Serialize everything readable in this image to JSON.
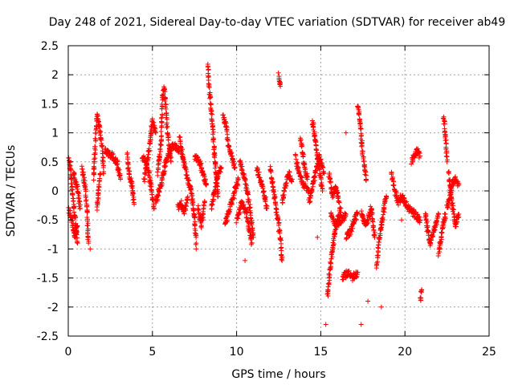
{
  "chart_data": {
    "type": "scatter",
    "title": "Day 248 of 2021, Sidereal Day-to-day VTEC variation (SDTVAR) for receiver ab49",
    "xlabel": "GPS time / hours",
    "ylabel": "SDTVAR / TECUs",
    "xlim": [
      0,
      25
    ],
    "ylim": [
      -2.5,
      2.5
    ],
    "xticks": [
      "0",
      "5",
      "10",
      "15",
      "20",
      "25"
    ],
    "yticks": [
      "2.5",
      "2",
      "1.5",
      "1",
      "0.5",
      "0",
      "-0.5",
      "-1",
      "-1.5",
      "-2",
      "-2.5"
    ],
    "grid": true,
    "marker": "+",
    "color": "#ff0000",
    "series": [
      {
        "name": "SDTVAR",
        "tracks": [
          [
            [
              0.0,
              0.6
            ],
            [
              0.15,
              0.3
            ],
            [
              0.3,
              -0.2
            ],
            [
              0.45,
              -0.6
            ],
            [
              0.55,
              -0.9
            ]
          ],
          [
            [
              0.0,
              -0.3
            ],
            [
              0.2,
              -0.5
            ],
            [
              0.4,
              -0.8
            ],
            [
              0.55,
              -0.6
            ]
          ],
          [
            [
              0.3,
              0.3
            ],
            [
              0.5,
              0.1
            ],
            [
              0.6,
              -0.1
            ],
            [
              0.7,
              -0.3
            ]
          ],
          [
            [
              0.8,
              0.4
            ],
            [
              1.0,
              0.1
            ],
            [
              1.1,
              -0.3
            ],
            [
              1.2,
              -0.9
            ]
          ],
          [
            [
              1.5,
              0.2
            ],
            [
              1.6,
              0.8
            ],
            [
              1.7,
              1.3
            ],
            [
              1.85,
              1.1
            ],
            [
              2.0,
              0.8
            ],
            [
              2.1,
              0.3
            ]
          ],
          [
            [
              1.7,
              -0.3
            ],
            [
              1.8,
              0.0
            ],
            [
              1.9,
              0.3
            ]
          ],
          [
            [
              2.2,
              0.7
            ],
            [
              2.6,
              0.6
            ],
            [
              2.9,
              0.5
            ],
            [
              3.1,
              0.2
            ]
          ],
          [
            [
              3.5,
              0.6
            ],
            [
              3.6,
              0.3
            ],
            [
              3.8,
              0.1
            ],
            [
              3.9,
              -0.2
            ]
          ],
          [
            [
              4.4,
              0.6
            ],
            [
              4.6,
              0.5
            ],
            [
              4.8,
              0.3
            ],
            [
              5.0,
              -0.1
            ],
            [
              5.1,
              -0.3
            ]
          ],
          [
            [
              4.5,
              0.2
            ],
            [
              4.8,
              0.7
            ],
            [
              5.0,
              1.2
            ],
            [
              5.2,
              1.0
            ]
          ],
          [
            [
              5.3,
              0.3
            ],
            [
              5.5,
              0.8
            ],
            [
              5.6,
              1.6
            ],
            [
              5.7,
              1.8
            ],
            [
              5.9,
              1.0
            ],
            [
              6.1,
              0.5
            ]
          ],
          [
            [
              5.2,
              -0.2
            ],
            [
              5.5,
              0.1
            ],
            [
              5.8,
              0.5
            ],
            [
              6.2,
              0.8
            ],
            [
              6.6,
              0.7
            ]
          ],
          [
            [
              6.6,
              0.9
            ],
            [
              6.8,
              0.6
            ],
            [
              7.0,
              0.3
            ],
            [
              7.3,
              0.0
            ],
            [
              7.5,
              -0.5
            ],
            [
              7.6,
              -0.9
            ]
          ],
          [
            [
              6.5,
              -0.3
            ],
            [
              6.7,
              -0.2
            ],
            [
              6.9,
              -0.4
            ],
            [
              7.1,
              -0.1
            ]
          ],
          [
            [
              7.5,
              0.6
            ],
            [
              7.8,
              0.5
            ],
            [
              8.0,
              0.3
            ],
            [
              8.2,
              0.1
            ]
          ],
          [
            [
              7.7,
              -0.3
            ],
            [
              7.9,
              -0.6
            ],
            [
              8.1,
              -0.2
            ]
          ],
          [
            [
              8.3,
              2.2
            ],
            [
              8.35,
              1.8
            ],
            [
              8.5,
              1.4
            ],
            [
              8.6,
              1.0
            ],
            [
              8.7,
              0.6
            ],
            [
              8.8,
              0.2
            ],
            [
              8.9,
              -0.1
            ]
          ],
          [
            [
              8.5,
              -0.3
            ],
            [
              8.7,
              0.0
            ],
            [
              8.9,
              0.3
            ],
            [
              9.1,
              0.4
            ]
          ],
          [
            [
              9.2,
              1.3
            ],
            [
              9.4,
              1.1
            ],
            [
              9.5,
              0.8
            ],
            [
              9.7,
              0.6
            ],
            [
              9.9,
              0.4
            ]
          ],
          [
            [
              9.3,
              -0.6
            ],
            [
              9.5,
              -0.4
            ],
            [
              9.7,
              -0.2
            ],
            [
              9.9,
              0.0
            ],
            [
              10.1,
              0.2
            ]
          ],
          [
            [
              10.2,
              0.5
            ],
            [
              10.5,
              0.2
            ],
            [
              10.8,
              -0.3
            ],
            [
              11.0,
              -0.8
            ]
          ],
          [
            [
              10.0,
              -0.5
            ],
            [
              10.3,
              -0.2
            ],
            [
              10.6,
              -0.4
            ],
            [
              10.9,
              -0.9
            ]
          ],
          [
            [
              11.2,
              0.4
            ],
            [
              11.4,
              0.2
            ],
            [
              11.6,
              0.0
            ],
            [
              11.8,
              -0.3
            ]
          ],
          [
            [
              12.0,
              0.4
            ],
            [
              12.2,
              0.0
            ],
            [
              12.4,
              -0.4
            ],
            [
              12.6,
              -0.8
            ],
            [
              12.7,
              -1.2
            ]
          ],
          [
            [
              12.5,
              2.0
            ],
            [
              12.6,
              1.8
            ]
          ],
          [
            [
              12.7,
              -0.2
            ],
            [
              12.9,
              0.1
            ],
            [
              13.1,
              0.3
            ],
            [
              13.3,
              0.2
            ]
          ],
          [
            [
              13.5,
              0.6
            ],
            [
              13.7,
              0.3
            ],
            [
              14.0,
              0.1
            ],
            [
              14.3,
              0.0
            ]
          ],
          [
            [
              13.8,
              0.9
            ],
            [
              14.0,
              0.5
            ],
            [
              14.2,
              0.2
            ]
          ],
          [
            [
              14.5,
              1.2
            ],
            [
              14.7,
              0.8
            ],
            [
              14.9,
              0.4
            ],
            [
              15.1,
              0.0
            ]
          ],
          [
            [
              14.3,
              -0.2
            ],
            [
              14.6,
              0.2
            ],
            [
              14.9,
              0.6
            ],
            [
              15.2,
              0.3
            ]
          ],
          [
            [
              15.4,
              -1.8
            ],
            [
              15.6,
              -1.2
            ],
            [
              15.8,
              -0.8
            ],
            [
              16.0,
              -0.5
            ],
            [
              16.2,
              -0.3
            ]
          ],
          [
            [
              15.6,
              -0.4
            ],
            [
              15.9,
              -0.6
            ],
            [
              16.2,
              -0.5
            ],
            [
              16.5,
              -0.4
            ]
          ],
          [
            [
              15.5,
              0.3
            ],
            [
              15.7,
              -0.1
            ],
            [
              15.9,
              0.1
            ],
            [
              16.1,
              -0.2
            ]
          ],
          [
            [
              16.5,
              -0.8
            ],
            [
              16.8,
              -0.7
            ],
            [
              17.0,
              -0.5
            ],
            [
              17.2,
              -0.4
            ]
          ],
          [
            [
              16.3,
              -1.5
            ],
            [
              16.6,
              -1.4
            ],
            [
              16.9,
              -1.5
            ],
            [
              17.2,
              -1.4
            ]
          ],
          [
            [
              17.2,
              1.5
            ],
            [
              17.3,
              1.3
            ],
            [
              17.5,
              0.6
            ],
            [
              17.7,
              0.2
            ]
          ],
          [
            [
              17.4,
              -0.4
            ],
            [
              17.7,
              -0.6
            ],
            [
              18.0,
              -0.3
            ],
            [
              18.2,
              -0.8
            ]
          ],
          [
            [
              18.3,
              -1.3
            ],
            [
              18.5,
              -0.8
            ],
            [
              18.7,
              -0.4
            ],
            [
              18.9,
              -0.1
            ]
          ],
          [
            [
              19.2,
              0.3
            ],
            [
              19.4,
              0.0
            ],
            [
              19.6,
              -0.2
            ],
            [
              19.8,
              -0.1
            ]
          ],
          [
            [
              19.8,
              -0.1
            ],
            [
              20.2,
              -0.3
            ],
            [
              20.6,
              -0.4
            ],
            [
              20.9,
              -0.5
            ]
          ],
          [
            [
              20.4,
              0.5
            ],
            [
              20.7,
              0.7
            ],
            [
              20.9,
              0.6
            ]
          ],
          [
            [
              20.9,
              -1.9
            ],
            [
              21.0,
              -1.7
            ]
          ],
          [
            [
              21.2,
              -0.4
            ],
            [
              21.5,
              -0.9
            ],
            [
              21.8,
              -0.6
            ],
            [
              22.0,
              -0.4
            ]
          ],
          [
            [
              22.0,
              -1.1
            ],
            [
              22.2,
              -0.7
            ],
            [
              22.4,
              -0.4
            ]
          ],
          [
            [
              22.3,
              1.3
            ],
            [
              22.4,
              1.0
            ],
            [
              22.5,
              0.5
            ]
          ],
          [
            [
              22.6,
              0.3
            ],
            [
              22.8,
              -0.2
            ],
            [
              23.0,
              -0.6
            ],
            [
              23.2,
              -0.4
            ]
          ],
          [
            [
              22.5,
              -0.3
            ],
            [
              22.8,
              0.1
            ],
            [
              23.0,
              0.2
            ],
            [
              23.2,
              0.1
            ]
          ]
        ],
        "isolated": [
          [
            10.5,
            -1.2
          ],
          [
            12.5,
            -0.7
          ],
          [
            14.8,
            -0.8
          ],
          [
            16.5,
            1.0
          ],
          [
            17.8,
            -1.9
          ],
          [
            18.6,
            -2.0
          ],
          [
            19.8,
            -0.5
          ],
          [
            21.3,
            -0.7
          ],
          [
            15.3,
            -2.3
          ],
          [
            17.4,
            -2.3
          ],
          [
            22.4,
            0.95
          ],
          [
            1.3,
            -1.0
          ],
          [
            7.6,
            -1.0
          ]
        ]
      }
    ]
  }
}
